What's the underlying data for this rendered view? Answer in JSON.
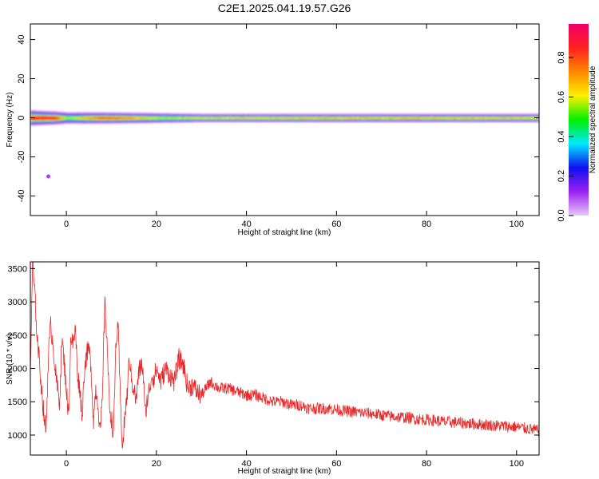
{
  "title": "C2E1.2025.041.19.57.G26",
  "chart_data": [
    {
      "type": "heatmap",
      "xlabel": "Height of straight line (km)",
      "ylabel": "Frequency (Hz)",
      "xlim": [
        -8,
        105
      ],
      "ylim": [
        -50,
        48
      ],
      "xticks": [
        0,
        20,
        40,
        60,
        80,
        100
      ],
      "yticks": [
        -40,
        -20,
        0,
        20,
        40
      ],
      "xtick_labels": [
        "0",
        "20",
        "40",
        "60",
        "80",
        "100"
      ],
      "ytick_labels": [
        "-40",
        "-20",
        "0",
        "20",
        "40"
      ],
      "band_center_hz": 0,
      "band_halfwidth_hz": [
        [
          -8,
          4.5
        ],
        [
          0,
          3.5
        ],
        [
          20,
          3
        ],
        [
          30,
          2.5
        ],
        [
          105,
          2.5
        ]
      ],
      "amplitude_profile": [
        [
          -7,
          0.95
        ],
        [
          -3,
          0.95
        ],
        [
          0,
          0.55
        ],
        [
          4,
          0.7
        ],
        [
          8,
          0.85
        ],
        [
          12,
          0.8
        ],
        [
          16,
          0.7
        ],
        [
          20,
          0.6
        ],
        [
          25,
          0.6
        ],
        [
          30,
          0.65
        ],
        [
          60,
          0.7
        ],
        [
          80,
          0.7
        ],
        [
          105,
          0.68
        ]
      ],
      "outlier": {
        "x": -4,
        "y": -30,
        "amplitude": 0.1
      },
      "colorbar": {
        "label": "Normalized spectral amplitude",
        "range": [
          0,
          0.97
        ],
        "ticks": [
          0.0,
          0.2,
          0.4,
          0.6,
          0.8
        ],
        "tick_labels": [
          "0.0",
          "0.2",
          "0.4",
          "0.6",
          "0.8"
        ],
        "stops": [
          "#e8c8f8",
          "#9a20f0",
          "#1010f0",
          "#00e8ff",
          "#00f000",
          "#fff000",
          "#ff8800",
          "#ff2020",
          "#f0006a"
        ]
      }
    },
    {
      "type": "line",
      "xlabel": "Height of straight line (km)",
      "ylabel": "SNR (10 * v/v)",
      "xlim": [
        -8,
        105
      ],
      "ylim": [
        700,
        3600
      ],
      "xticks": [
        0,
        20,
        40,
        60,
        80,
        100
      ],
      "yticks": [
        1000,
        1500,
        2000,
        2500,
        3000,
        3500
      ],
      "xtick_labels": [
        "0",
        "20",
        "40",
        "60",
        "80",
        "100"
      ],
      "ytick_labels": [
        "1000",
        "1500",
        "2000",
        "2500",
        "3000",
        "3500"
      ],
      "color": "#e82828",
      "series": [
        {
          "x": [
            -8,
            -7.5,
            -7,
            -6.5,
            -6,
            -5.5,
            -5,
            -4.5,
            -4,
            -3.5,
            -3,
            -2.5,
            -2,
            -1.5,
            -1,
            -0.5,
            0,
            0.5,
            1,
            1.5,
            2,
            2.5,
            3,
            3.5,
            4,
            4.5,
            5,
            5.5,
            6,
            6.5,
            7,
            7.5,
            8,
            8.5,
            9,
            9.5,
            10,
            10.5,
            11,
            11.5,
            12,
            12.5,
            13,
            13.5,
            14,
            14.5,
            15,
            15.5,
            16,
            16.5,
            17,
            17.5,
            18,
            18.5,
            19,
            19.5,
            20,
            21,
            22,
            23,
            24,
            25,
            26,
            27,
            28,
            29,
            30,
            32,
            34,
            36,
            38,
            40,
            42,
            44,
            46,
            48,
            50,
            52,
            54,
            56,
            58,
            60,
            62,
            64,
            66,
            68,
            70,
            72,
            74,
            76,
            78,
            80,
            82,
            84,
            86,
            88,
            90,
            92,
            94,
            96,
            98,
            100,
            102,
            104,
            105
          ],
          "y": [
            1900,
            3600,
            3100,
            2500,
            2100,
            1700,
            1300,
            1050,
            2200,
            2650,
            2400,
            2000,
            1700,
            1500,
            2450,
            2100,
            1700,
            1250,
            2500,
            2350,
            2600,
            1900,
            1700,
            1250,
            2000,
            2200,
            2300,
            2000,
            1200,
            1700,
            1500,
            1050,
            1500,
            3000,
            2500,
            1500,
            1250,
            1000,
            2400,
            2600,
            1500,
            800,
            1300,
            1600,
            2200,
            1800,
            1700,
            1500,
            1900,
            2050,
            2000,
            1300,
            1550,
            1700,
            1900,
            1850,
            2000,
            1800,
            2000,
            1900,
            1800,
            2150,
            2050,
            1700,
            1750,
            1650,
            1600,
            1800,
            1700,
            1700,
            1650,
            1600,
            1600,
            1550,
            1500,
            1500,
            1450,
            1450,
            1400,
            1400,
            1400,
            1380,
            1360,
            1350,
            1330,
            1320,
            1300,
            1280,
            1270,
            1260,
            1240,
            1230,
            1220,
            1200,
            1190,
            1180,
            1170,
            1160,
            1150,
            1140,
            1130,
            1120,
            1100,
            1080,
            1060
          ]
        }
      ]
    }
  ]
}
